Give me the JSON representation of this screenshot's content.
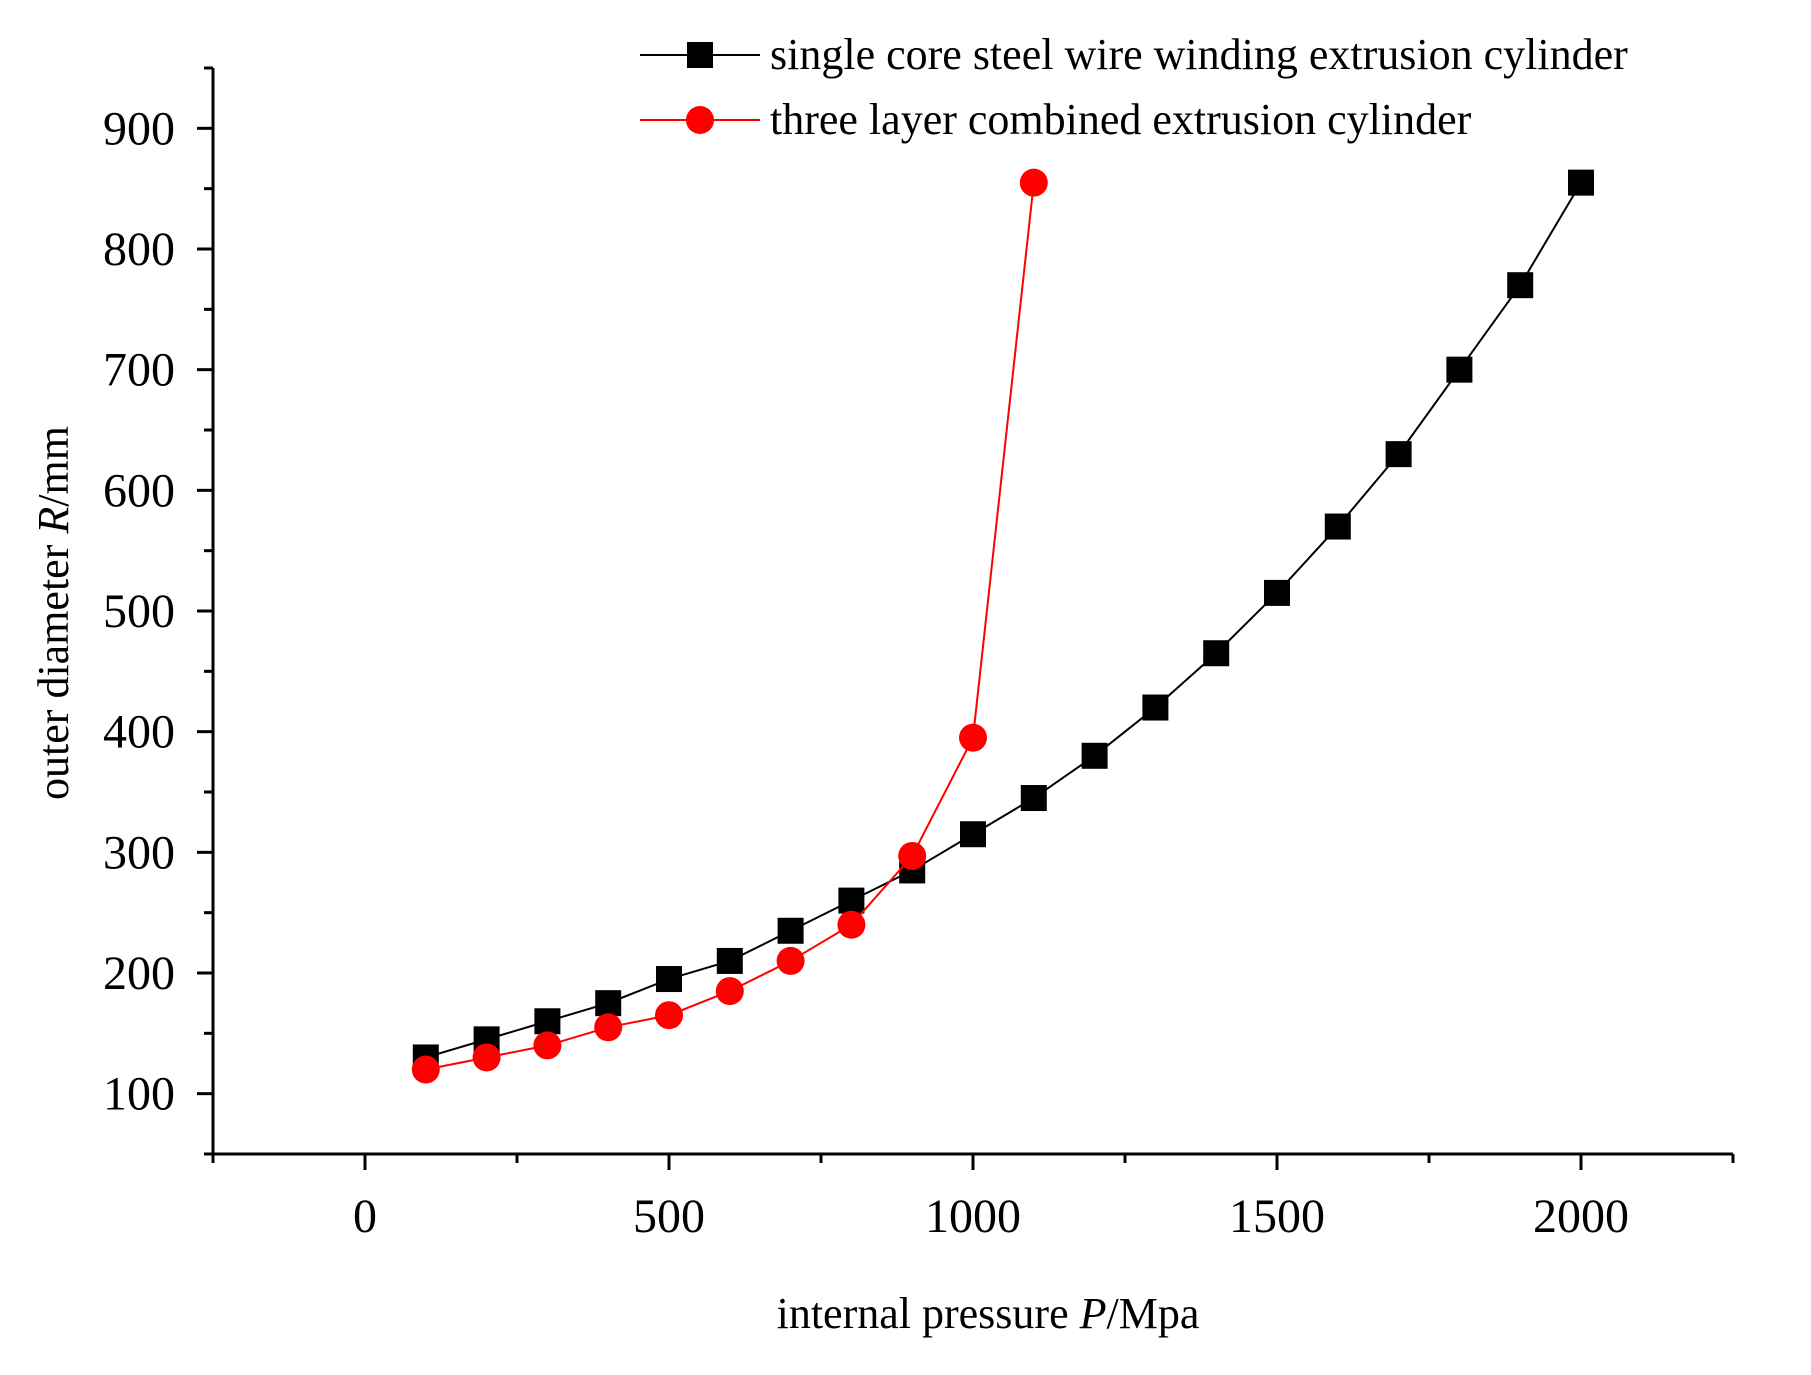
{
  "chart_data": {
    "type": "line",
    "title": "",
    "xlabel": {
      "prefix": "internal pressure ",
      "variable": "P",
      "unit": "/Mpa"
    },
    "ylabel": {
      "prefix": "outer diameter ",
      "variable": "R",
      "unit": "/mm"
    },
    "xlim": [
      -250,
      2250
    ],
    "ylim": [
      50,
      950
    ],
    "xticks": [
      0,
      500,
      1000,
      1500,
      2000
    ],
    "yticks": [
      100,
      200,
      300,
      400,
      500,
      600,
      700,
      800,
      900
    ],
    "x_minor_step": 250,
    "y_minor_step": 50,
    "grid": false,
    "legend_position": "top-right",
    "series": [
      {
        "name": "single core steel wire winding extrusion cylinder",
        "color": "#000000",
        "marker": "square",
        "x": [
          100,
          200,
          300,
          400,
          500,
          600,
          700,
          800,
          900,
          1000,
          1100,
          1200,
          1300,
          1400,
          1500,
          1600,
          1700,
          1800,
          1900,
          2000
        ],
        "y": [
          130,
          145,
          160,
          175,
          195,
          210,
          235,
          260,
          285,
          315,
          345,
          380,
          420,
          465,
          515,
          570,
          630,
          700,
          770,
          855
        ]
      },
      {
        "name": "three layer combined extrusion cylinder",
        "color": "#ff0000",
        "marker": "circle",
        "x": [
          100,
          200,
          300,
          400,
          500,
          600,
          700,
          800,
          900,
          1000,
          1100
        ],
        "y": [
          120,
          130,
          140,
          155,
          165,
          185,
          210,
          240,
          297,
          395,
          855
        ]
      }
    ]
  }
}
